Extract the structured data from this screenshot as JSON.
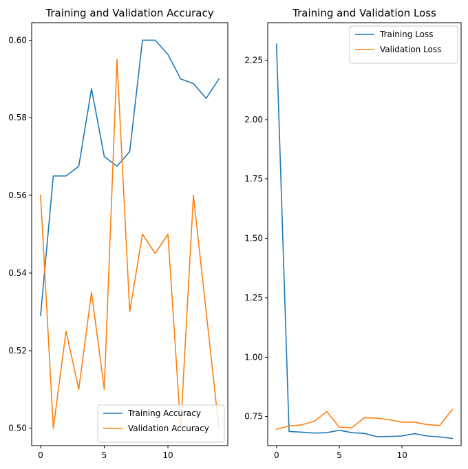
{
  "chart_data": [
    {
      "type": "line",
      "title": "Training and Validation Accuracy",
      "xlabel": "",
      "ylabel": "",
      "x": [
        0,
        1,
        2,
        3,
        4,
        5,
        6,
        7,
        8,
        9,
        10,
        11,
        12,
        13,
        14
      ],
      "xlim": [
        -0.7,
        14.7
      ],
      "ylim": [
        0.4955,
        0.6045
      ],
      "xticks": [
        0,
        5,
        10
      ],
      "xtick_labels": [
        "0",
        "5",
        "10"
      ],
      "yticks": [
        0.5,
        0.52,
        0.54,
        0.56,
        0.58,
        0.6
      ],
      "ytick_labels": [
        "0.50",
        "0.52",
        "0.54",
        "0.56",
        "0.58",
        "0.60"
      ],
      "grid": false,
      "legend_position": "lower-right",
      "series": [
        {
          "name": "Training Accuracy",
          "color": "#1f77b4",
          "values": [
            0.529,
            0.565,
            0.565,
            0.5675,
            0.5875,
            0.57,
            0.5675,
            0.5713,
            0.6,
            0.6,
            0.5963,
            0.59,
            0.5888,
            0.585,
            0.59
          ]
        },
        {
          "name": "Validation Accuracy",
          "color": "#ff7f0e",
          "values": [
            0.56,
            0.5,
            0.525,
            0.51,
            0.535,
            0.51,
            0.595,
            0.53,
            0.55,
            0.545,
            0.55,
            0.5,
            0.56,
            0.53,
            0.5
          ]
        }
      ]
    },
    {
      "type": "line",
      "title": "Training and Validation Loss",
      "xlabel": "",
      "ylabel": "",
      "x": [
        0,
        1,
        2,
        3,
        4,
        5,
        6,
        7,
        8,
        9,
        10,
        11,
        12,
        13,
        14
      ],
      "xlim": [
        -0.7,
        14.7
      ],
      "ylim": [
        0.6275,
        2.4075
      ],
      "xticks": [
        0,
        5,
        10
      ],
      "xtick_labels": [
        "0",
        "5",
        "10"
      ],
      "yticks": [
        0.75,
        1.0,
        1.25,
        1.5,
        1.75,
        2.0,
        2.25
      ],
      "ytick_labels": [
        "0.75",
        "1.00",
        "1.25",
        "1.50",
        "1.75",
        "2.00",
        "2.25"
      ],
      "grid": false,
      "legend_position": "upper-right",
      "series": [
        {
          "name": "Training Loss",
          "color": "#1f77b4",
          "values": [
            2.318,
            0.687,
            0.684,
            0.68,
            0.682,
            0.692,
            0.682,
            0.679,
            0.665,
            0.666,
            0.668,
            0.678,
            0.668,
            0.664,
            0.658
          ]
        },
        {
          "name": "Validation Loss",
          "color": "#ff7f0e",
          "values": [
            0.697,
            0.71,
            0.715,
            0.73,
            0.771,
            0.705,
            0.703,
            0.745,
            0.743,
            0.736,
            0.726,
            0.726,
            0.716,
            0.712,
            0.78
          ]
        }
      ]
    }
  ]
}
